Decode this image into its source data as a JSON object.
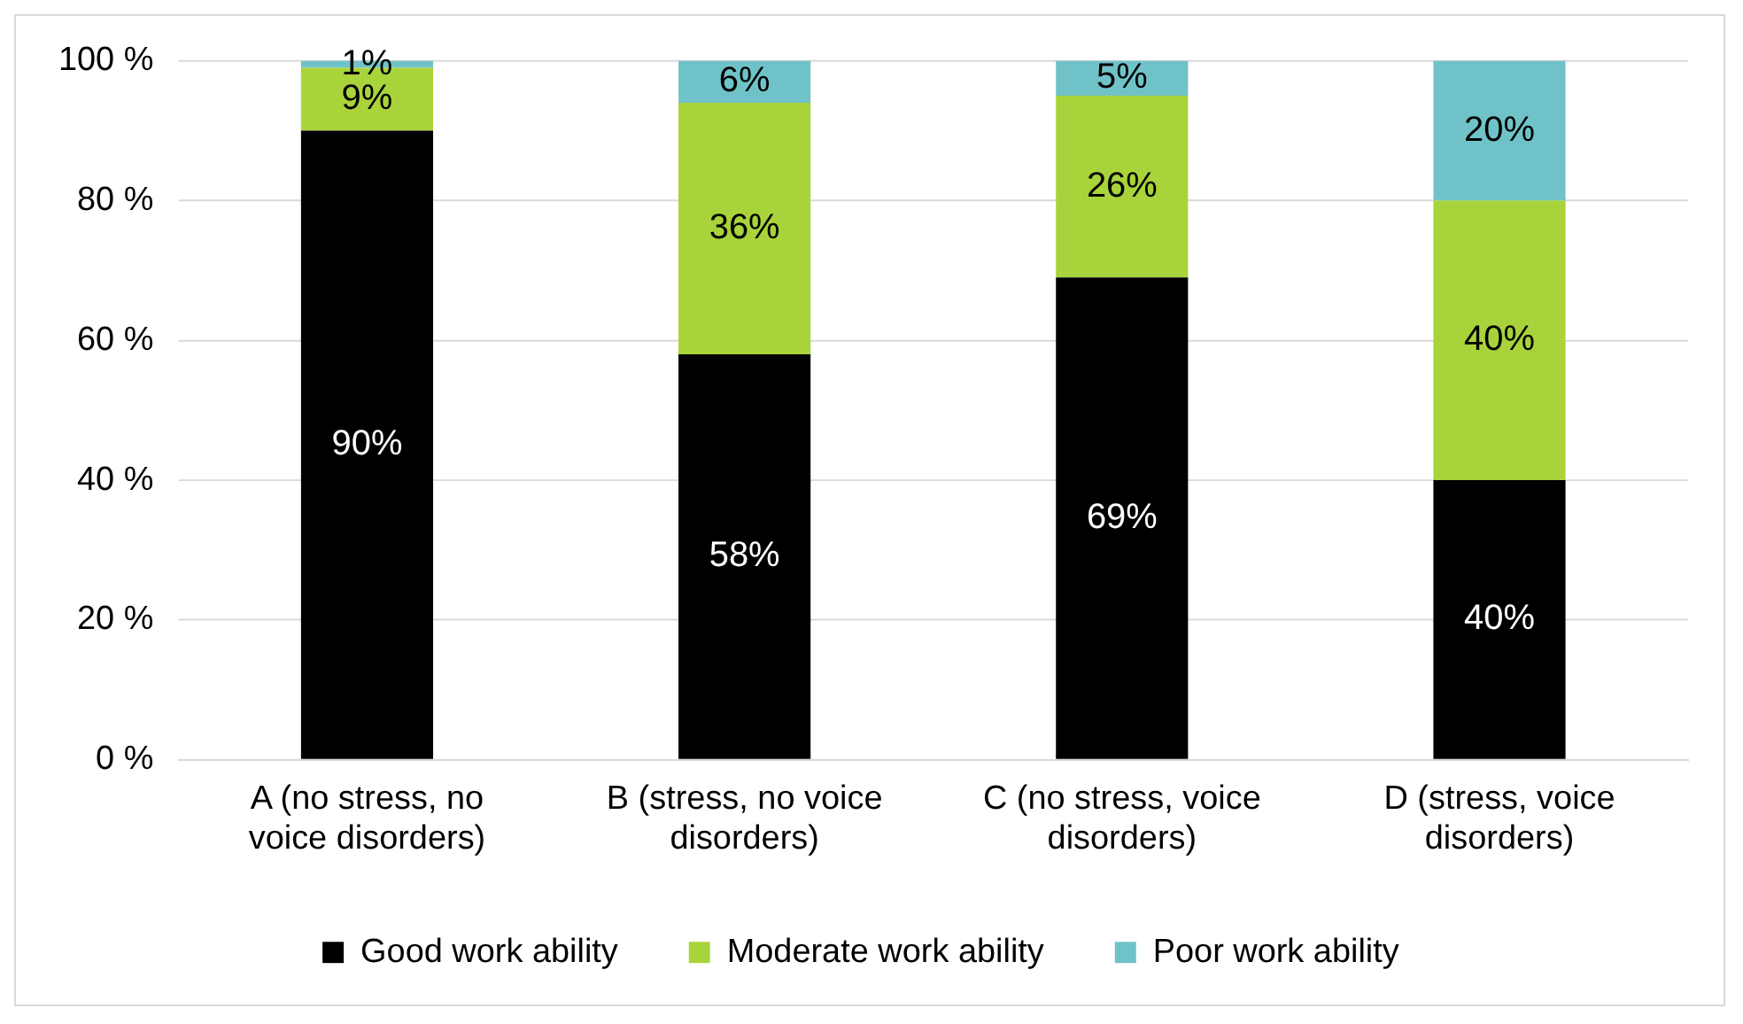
{
  "chart_data": {
    "type": "bar",
    "stacked": true,
    "categories": [
      "A (no stress, no voice disorders)",
      "B (stress, no voice disorders)",
      "C (no stress, voice disorders)",
      "D (stress, voice disorders)"
    ],
    "series": [
      {
        "name": "Good work ability",
        "color": "#000000",
        "values": [
          90,
          58,
          69,
          40
        ],
        "value_labels": [
          "90%",
          "58%",
          "69%",
          "40%"
        ]
      },
      {
        "name": "Moderate work ability",
        "color": "#a9d33a",
        "values": [
          9,
          36,
          26,
          40
        ],
        "value_labels": [
          "9%",
          "36%",
          "26%",
          "40%"
        ]
      },
      {
        "name": "Poor work ability",
        "color": "#6fc3c8",
        "values": [
          1,
          6,
          5,
          20
        ],
        "value_labels": [
          "1%",
          "6%",
          "5%",
          "20%"
        ]
      }
    ],
    "ylim": [
      0,
      100
    ],
    "yticks": [
      {
        "value": 0,
        "label": "0 %"
      },
      {
        "value": 20,
        "label": "20 %"
      },
      {
        "value": 40,
        "label": "40 %"
      },
      {
        "value": 60,
        "label": "60 %"
      },
      {
        "value": 80,
        "label": "80 %"
      },
      {
        "value": 100,
        "label": "100 %"
      }
    ],
    "grid": "y",
    "legend": "bottom"
  }
}
